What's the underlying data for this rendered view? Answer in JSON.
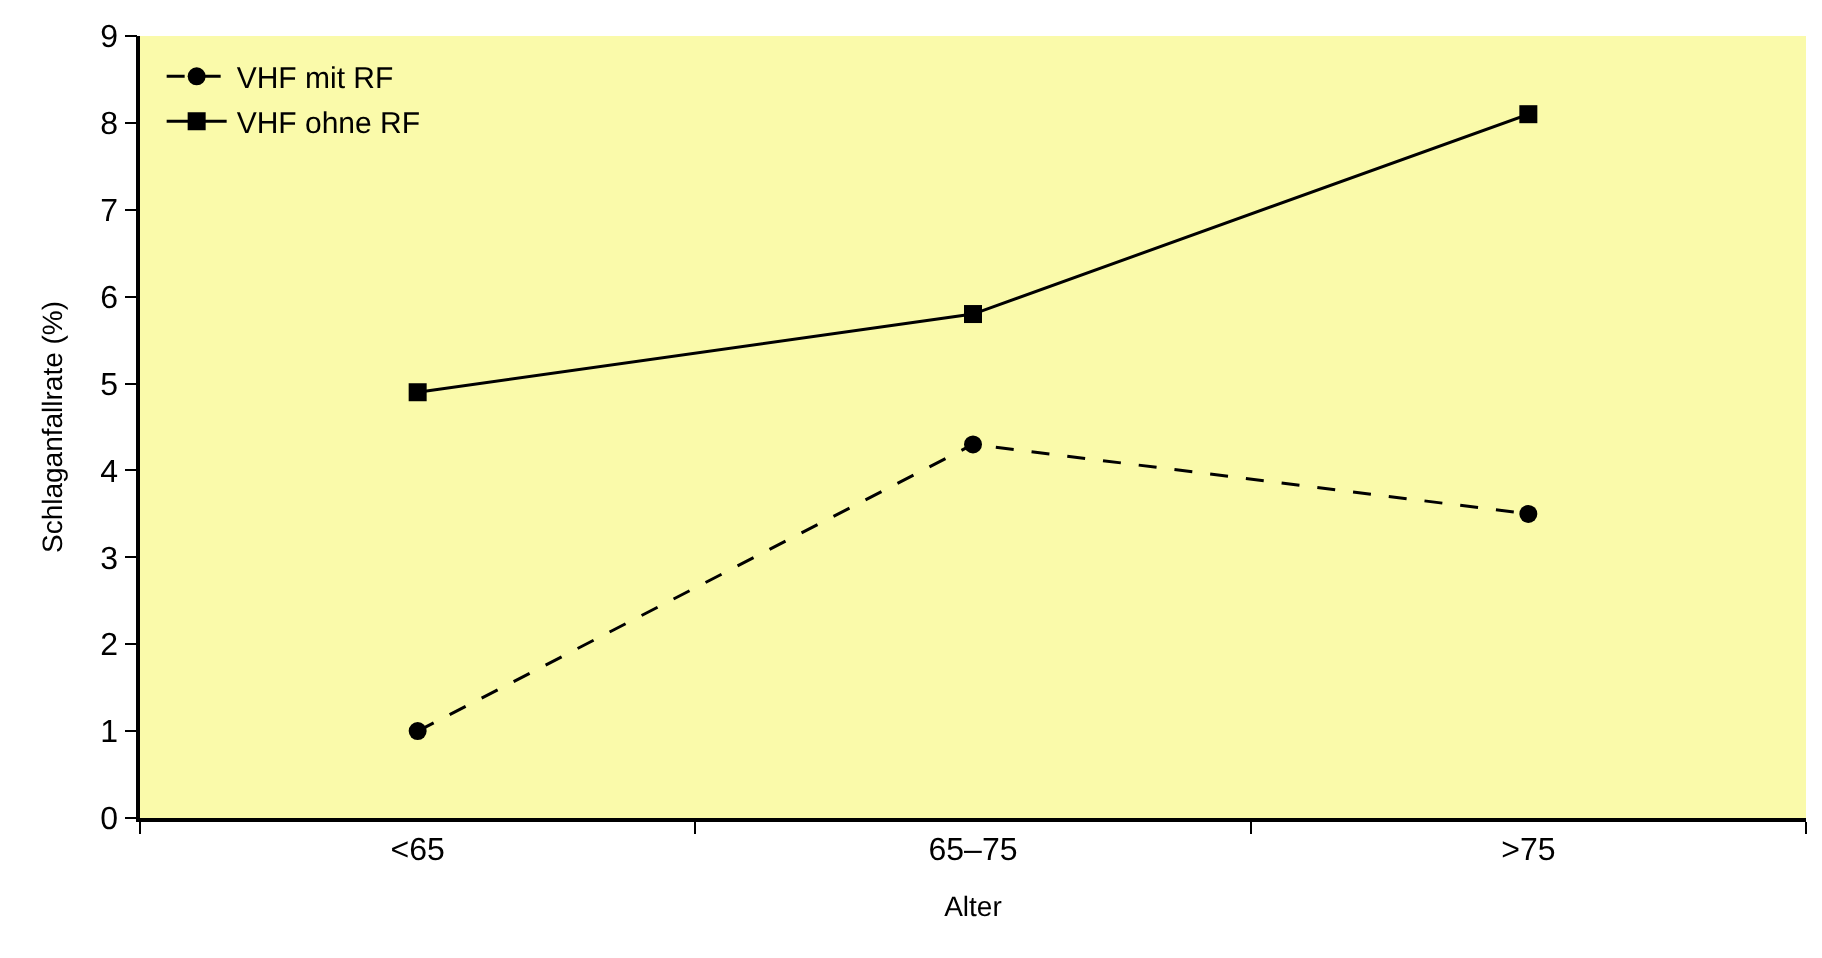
{
  "chart_data": {
    "type": "line",
    "xlabel": "Alter",
    "ylabel": "Schlaganfallrate (%)",
    "categories": [
      "<65",
      "65–75",
      ">75"
    ],
    "series": [
      {
        "name": "VHF mit RF",
        "color": "#000000",
        "values": [
          1.0,
          4.3,
          3.5
        ],
        "marker": "circle",
        "line_style": "dashed"
      },
      {
        "name": "VHF ohne RF",
        "color": "#000000",
        "values": [
          4.9,
          5.8,
          8.1
        ],
        "marker": "square",
        "line_style": "solid"
      }
    ],
    "ylim": [
      0,
      9
    ],
    "yticks": [
      0,
      1,
      2,
      3,
      4,
      5,
      6,
      7,
      8,
      9
    ],
    "grid": false,
    "legend": "top left"
  }
}
